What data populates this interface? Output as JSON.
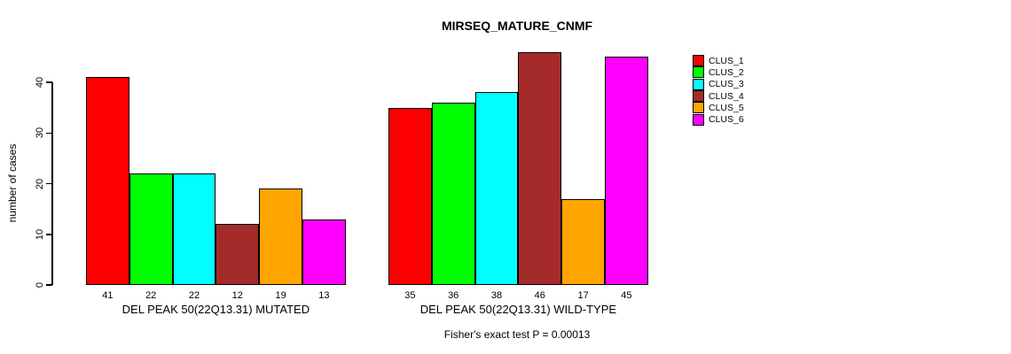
{
  "title": "MIRSEQ_MATURE_CNMF",
  "chart_data": {
    "type": "bar",
    "title": "MIRSEQ_MATURE_CNMF",
    "ylabel": "number of cases",
    "ylim": [
      0,
      40
    ],
    "yticks": [
      0,
      10,
      20,
      30,
      40
    ],
    "grid": false,
    "legend_position": "top-right",
    "background_color": "#FFFFFF",
    "bar_border_color": "#000000",
    "groups": [
      {
        "label": "DEL PEAK 50(22Q13.31) MUTATED",
        "values": [
          41,
          22,
          22,
          12,
          19,
          13
        ]
      },
      {
        "label": "DEL PEAK 50(22Q13.31) WILD-TYPE",
        "values": [
          35,
          36,
          38,
          46,
          17,
          45
        ]
      }
    ],
    "series": [
      {
        "name": "CLUS_1",
        "color": "#FF0000",
        "values": [
          41,
          35
        ]
      },
      {
        "name": "CLUS_2",
        "color": "#00FF00",
        "values": [
          22,
          36
        ]
      },
      {
        "name": "CLUS_3",
        "color": "#00FFFF",
        "values": [
          22,
          38
        ]
      },
      {
        "name": "CLUS_4",
        "color": "#A52A2A",
        "values": [
          12,
          46
        ]
      },
      {
        "name": "CLUS_5",
        "color": "#FFA500",
        "values": [
          19,
          17
        ]
      },
      {
        "name": "CLUS_6",
        "color": "#FF00FF",
        "values": [
          13,
          45
        ]
      }
    ],
    "annotation": "Fisher's exact test P = 0.00013"
  }
}
